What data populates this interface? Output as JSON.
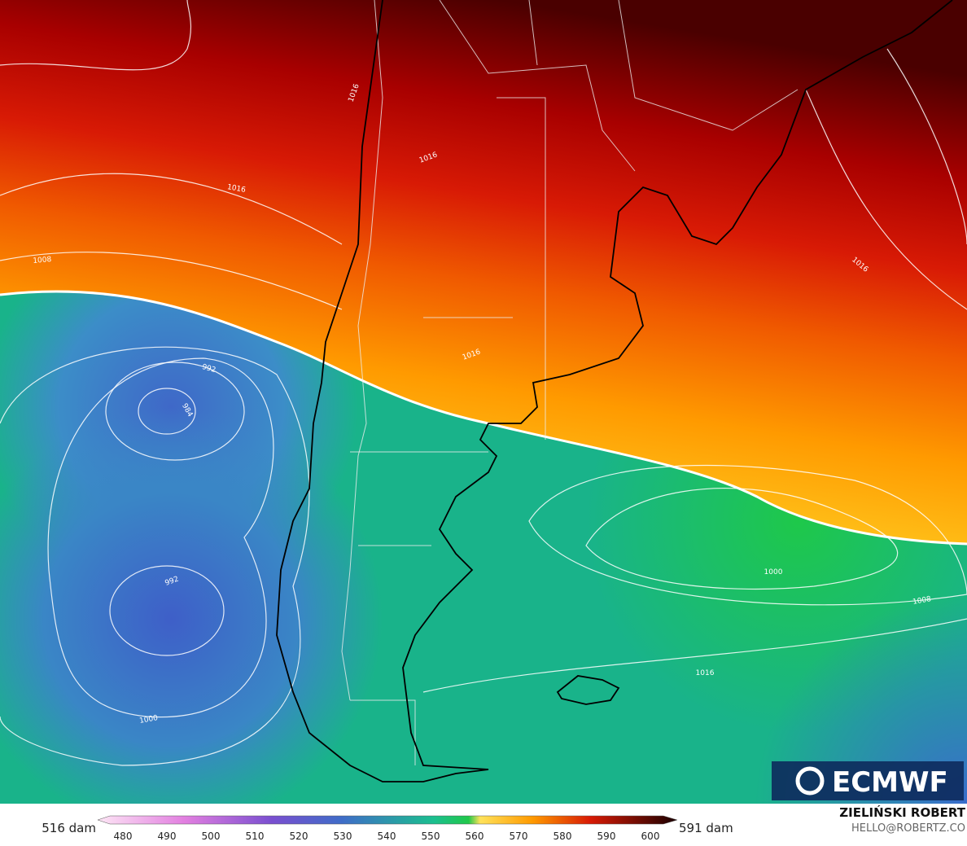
{
  "map": {
    "contour_labels": [
      1016,
      1016,
      1016,
      1008,
      1016,
      992,
      984,
      992,
      1000,
      1000,
      1008,
      1016,
      1016
    ],
    "logo": "ECMWF",
    "colorbar": {
      "min_label": "516 dam",
      "max_label": "591 dam",
      "ticks": [
        480,
        490,
        500,
        510,
        520,
        530,
        540,
        550,
        560,
        570,
        580,
        590,
        600
      ]
    },
    "credit": {
      "author": "ZIELIŃSKI ROBERT",
      "contact": "HELLO@ROBERTZ.CO"
    }
  }
}
